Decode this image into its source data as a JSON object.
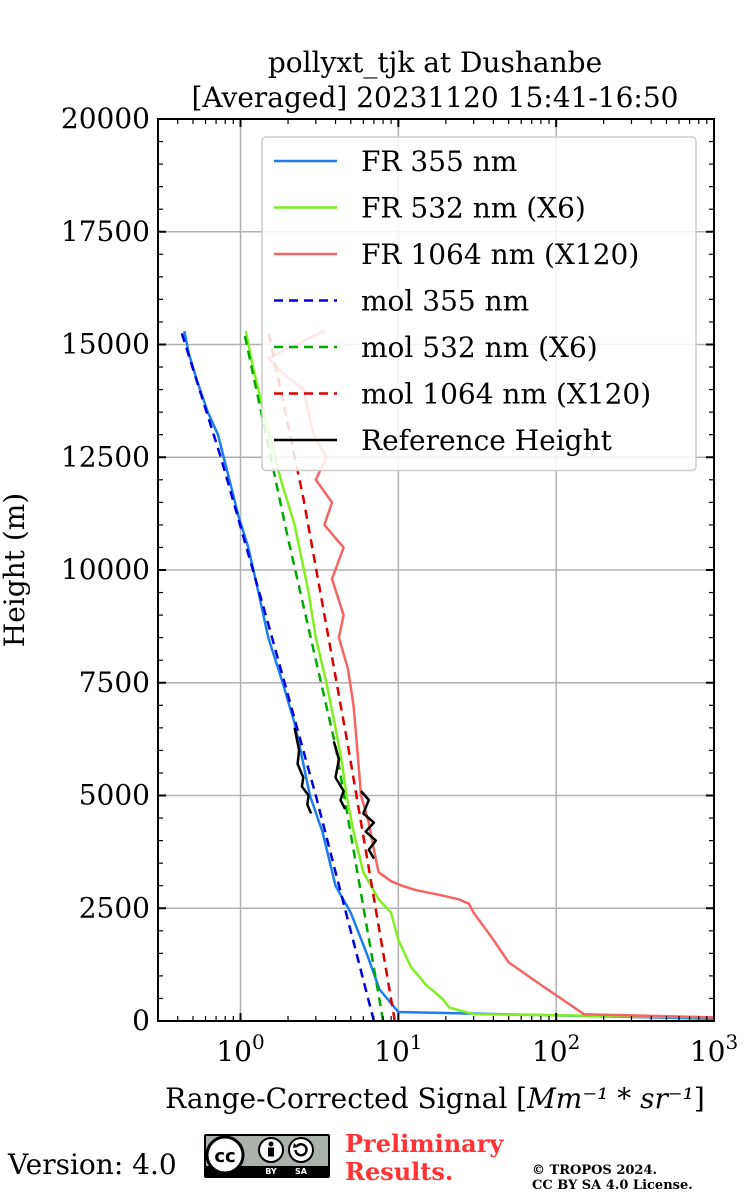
{
  "title": {
    "line1": "pollyxt_tjk at Dushanbe",
    "line2": "[Averaged] 20231120 15:41-16:50"
  },
  "footer": {
    "version": "Version: 4.0",
    "license_badge": {
      "cc": "cc",
      "by": "BY",
      "sa": "SA"
    },
    "preliminary_line1": "Preliminary",
    "preliminary_line2": "Results.",
    "copyright_line1": "© TROPOS 2024.",
    "copyright_line2": "CC BY SA 4.0 License."
  },
  "colors": {
    "fr355": "#1a7ef0",
    "fr532": "#80f020",
    "fr1064": "#f56464",
    "mol355": "#0000dd",
    "mol532": "#00aa00",
    "mol1064": "#dd0000",
    "reference": "#000000",
    "preliminary": "#ff3333"
  },
  "chart_data": {
    "type": "line",
    "xscale": "log",
    "xlim": [
      0.3,
      1000
    ],
    "ylim": [
      0,
      20000
    ],
    "grid": true,
    "legend_position": "top-right",
    "xlabel_text": "Range-Corrected Signal [",
    "xlabel_unit": "Mm⁻¹ * sr⁻¹",
    "xlabel_close": "]",
    "ylabel": "Height (m)",
    "y_ticks": [
      "0",
      "2500",
      "5000",
      "7500",
      "10000",
      "12500",
      "15000",
      "17500",
      "20000"
    ],
    "x_ticks": [
      {
        "base": "10",
        "exp": "0"
      },
      {
        "base": "10",
        "exp": "1"
      },
      {
        "base": "10",
        "exp": "2"
      },
      {
        "base": "10",
        "exp": "3"
      }
    ],
    "series": [
      {
        "name": "FR 355 nm",
        "style": "solid",
        "color_key": "fr355",
        "x": [
          1000,
          10,
          7.6,
          6.3,
          5.0,
          4.0,
          3.3,
          2.75,
          2.4,
          2.2,
          1.85,
          1.5,
          1.3,
          1.12,
          0.97,
          0.85,
          0.72,
          0.62,
          0.53,
          0.47,
          0.44
        ],
        "y": [
          50,
          200,
          700,
          1500,
          2400,
          3000,
          4200,
          5000,
          6000,
          6600,
          7500,
          8500,
          9500,
          10500,
          11200,
          12000,
          13000,
          13500,
          14200,
          14800,
          15300
        ]
      },
      {
        "name": "FR 532 nm (X6)",
        "style": "solid",
        "color_key": "fr532",
        "x": [
          1000,
          30,
          21,
          19,
          15,
          12,
          10,
          9.0,
          7.5,
          6.0,
          5.2,
          4.7,
          4.4,
          4.0,
          3.5,
          3.0,
          2.7,
          2.2,
          1.8,
          1.4,
          1.2,
          1.08
        ],
        "y": [
          80,
          150,
          300,
          500,
          800,
          1200,
          1800,
          2400,
          2700,
          3300,
          4200,
          5000,
          5700,
          6500,
          7500,
          8500,
          9500,
          11000,
          12000,
          13500,
          14500,
          15300
        ]
      },
      {
        "name": "FR 1064 nm (X120)",
        "style": "solid",
        "color_key": "fr1064",
        "x": [
          1000,
          150,
          130,
          80,
          50,
          40,
          30,
          28,
          24,
          18,
          13,
          10.5,
          9.0,
          7.5,
          7.0,
          6.5,
          5.8,
          5.5,
          5.2,
          4.8,
          4.2,
          4.5,
          3.8,
          4.5,
          3.4,
          3.8,
          3.0,
          3.5,
          2.9,
          2.7,
          2.5,
          1.8,
          1.5,
          3.4
        ],
        "y": [
          80,
          150,
          300,
          800,
          1300,
          1800,
          2400,
          2600,
          2700,
          2800,
          2900,
          3000,
          3100,
          3300,
          3800,
          4400,
          5000,
          6000,
          7000,
          7800,
          8500,
          9000,
          9800,
          10500,
          11000,
          11500,
          12000,
          12500,
          13000,
          13500,
          14000,
          14400,
          14700,
          15300
        ]
      },
      {
        "name": "mol 355 nm",
        "style": "dashed",
        "color_key": "mol355",
        "x": [
          7.0,
          3.0,
          1.5,
          0.75,
          0.42
        ],
        "y": [
          0,
          5000,
          8800,
          12500,
          15300
        ]
      },
      {
        "name": "mol 532 nm (X6)",
        "style": "dashed",
        "color_key": "mol532",
        "x": [
          8.0,
          4.0,
          2.0,
          1.05
        ],
        "y": [
          0,
          6100,
          10700,
          15300
        ]
      },
      {
        "name": "mol 1064 nm (X120)",
        "style": "dashed",
        "color_key": "mol1064",
        "x": [
          9.5,
          4.8,
          2.5,
          1.5
        ],
        "y": [
          0,
          6100,
          11600,
          15300
        ]
      },
      {
        "name": "Reference Height",
        "style": "solid",
        "color_key": "reference",
        "segments": [
          {
            "x": [
              2.2,
              2.35,
              2.3,
              2.5,
              2.45,
              2.7,
              2.65,
              2.8
            ],
            "y": [
              6500,
              6000,
              5700,
              5400,
              5200,
              5000,
              4800,
              4600
            ]
          },
          {
            "x": [
              3.9,
              4.2,
              4.0,
              4.5,
              4.3,
              4.6
            ],
            "y": [
              6200,
              5800,
              5400,
              5100,
              4900,
              4700
            ]
          },
          {
            "x": [
              5.8,
              6.5,
              6.0,
              7.0,
              6.2,
              7.2,
              6.5,
              7.0
            ],
            "y": [
              5100,
              4900,
              4600,
              4400,
              4200,
              4000,
              3800,
              3600
            ]
          }
        ]
      }
    ]
  }
}
